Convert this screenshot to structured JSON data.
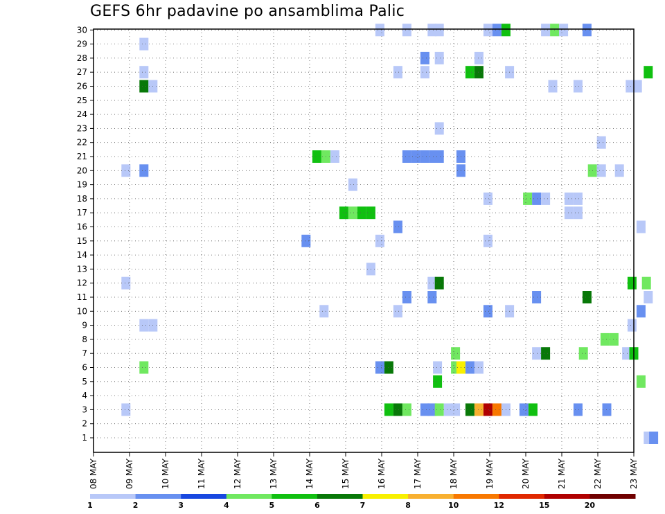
{
  "chart_data": {
    "type": "heatmap",
    "title": "GEFS 6hr padavine po ansamblima Palic",
    "y_ticks": [
      "1",
      "2",
      "3",
      "4",
      "5",
      "6",
      "7",
      "8",
      "9",
      "10",
      "11",
      "12",
      "13",
      "14",
      "15",
      "16",
      "17",
      "18",
      "19",
      "20",
      "21",
      "22",
      "23",
      "24",
      "25",
      "26",
      "27",
      "28",
      "29",
      "30"
    ],
    "x_ticks": [
      "08 MAY",
      "09 MAY",
      "10 MAY",
      "11 MAY",
      "12 MAY",
      "13 MAY",
      "14 MAY",
      "15 MAY",
      "16 MAY",
      "17 MAY",
      "18 MAY",
      "19 MAY",
      "20 MAY",
      "21 MAY",
      "22 MAY",
      "23 MAY"
    ],
    "ylim": [
      0.5,
      30
    ],
    "grid": true,
    "legend": {
      "placement": "bottom",
      "levels": [
        "1",
        "2",
        "3",
        "4",
        "5",
        "6",
        "7",
        "8",
        "10",
        "12",
        "15",
        "20"
      ],
      "colors": [
        "#b8c8f8",
        "#6890f0",
        "#1848e0",
        "#70e860",
        "#10c010",
        "#087808",
        "#f8f000",
        "#f8b030",
        "#f87800",
        "#e02800",
        "#b00000",
        "#700000"
      ]
    },
    "cells": [
      {
        "d": 15.4,
        "m": 1,
        "b": 1
      },
      {
        "d": 15.55,
        "m": 1,
        "b": 2
      },
      {
        "d": 14.25,
        "m": 3,
        "b": 1
      },
      {
        "d": 14.25,
        "m": 3,
        "b": 2
      },
      {
        "d": 0.9,
        "m": 3,
        "b": 1
      },
      {
        "d": 8.2,
        "m": 3,
        "b": 5
      },
      {
        "d": 8.45,
        "m": 3,
        "b": 6
      },
      {
        "d": 8.7,
        "m": 3,
        "b": 4
      },
      {
        "d": 9.2,
        "m": 3,
        "b": 2
      },
      {
        "d": 9.4,
        "m": 3,
        "b": 2
      },
      {
        "d": 9.6,
        "m": 3,
        "b": 4
      },
      {
        "d": 9.85,
        "m": 3,
        "b": 1
      },
      {
        "d": 10.05,
        "m": 3,
        "b": 1
      },
      {
        "d": 10.45,
        "m": 3,
        "b": 6
      },
      {
        "d": 10.7,
        "m": 3,
        "b": 8
      },
      {
        "d": 10.95,
        "m": 3,
        "b": 11
      },
      {
        "d": 11.2,
        "m": 3,
        "b": 9
      },
      {
        "d": 11.45,
        "m": 3,
        "b": 1
      },
      {
        "d": 11.95,
        "m": 3,
        "b": 2
      },
      {
        "d": 12.2,
        "m": 3,
        "b": 5
      },
      {
        "d": 13.45,
        "m": 3,
        "b": 2
      },
      {
        "d": 9.55,
        "m": 5,
        "b": 5
      },
      {
        "d": 15.2,
        "m": 5,
        "b": 4
      },
      {
        "d": 1.4,
        "m": 6,
        "b": 4
      },
      {
        "d": 7.95,
        "m": 6,
        "b": 2
      },
      {
        "d": 8.2,
        "m": 6,
        "b": 6
      },
      {
        "d": 9.55,
        "m": 6,
        "b": 1
      },
      {
        "d": 10.05,
        "m": 6,
        "b": 4
      },
      {
        "d": 10.2,
        "m": 6,
        "b": 7
      },
      {
        "d": 10.45,
        "m": 6,
        "b": 2
      },
      {
        "d": 10.7,
        "m": 6,
        "b": 1
      },
      {
        "d": 10.05,
        "m": 7,
        "b": 4
      },
      {
        "d": 12.3,
        "m": 7,
        "b": 1
      },
      {
        "d": 12.55,
        "m": 7,
        "b": 6
      },
      {
        "d": 13.6,
        "m": 7,
        "b": 4
      },
      {
        "d": 14.8,
        "m": 7,
        "b": 1
      },
      {
        "d": 15.0,
        "m": 7,
        "b": 5
      },
      {
        "d": 14.2,
        "m": 8,
        "b": 4
      },
      {
        "d": 14.45,
        "m": 8,
        "b": 4
      },
      {
        "d": 1.4,
        "m": 9,
        "b": 1
      },
      {
        "d": 1.65,
        "m": 9,
        "b": 1
      },
      {
        "d": 14.95,
        "m": 9,
        "b": 1
      },
      {
        "d": 6.4,
        "m": 10,
        "b": 1
      },
      {
        "d": 8.45,
        "m": 10,
        "b": 1
      },
      {
        "d": 10.95,
        "m": 10,
        "b": 2
      },
      {
        "d": 11.55,
        "m": 10,
        "b": 1
      },
      {
        "d": 15.2,
        "m": 10,
        "b": 2
      },
      {
        "d": 8.7,
        "m": 11,
        "b": 2
      },
      {
        "d": 9.4,
        "m": 11,
        "b": 2
      },
      {
        "d": 12.3,
        "m": 11,
        "b": 2
      },
      {
        "d": 13.7,
        "m": 11,
        "b": 6
      },
      {
        "d": 15.4,
        "m": 11,
        "b": 1
      },
      {
        "d": 0.9,
        "m": 12,
        "b": 1
      },
      {
        "d": 9.4,
        "m": 12,
        "b": 1
      },
      {
        "d": 9.6,
        "m": 12,
        "b": 6
      },
      {
        "d": 14.95,
        "m": 12,
        "b": 5
      },
      {
        "d": 15.35,
        "m": 12,
        "b": 4
      },
      {
        "d": 7.7,
        "m": 13,
        "b": 1
      },
      {
        "d": 5.9,
        "m": 15,
        "b": 2
      },
      {
        "d": 7.95,
        "m": 15,
        "b": 1
      },
      {
        "d": 10.95,
        "m": 15,
        "b": 1
      },
      {
        "d": 8.45,
        "m": 16,
        "b": 2
      },
      {
        "d": 15.2,
        "m": 16,
        "b": 1
      },
      {
        "d": 6.95,
        "m": 17,
        "b": 5
      },
      {
        "d": 7.2,
        "m": 17,
        "b": 4
      },
      {
        "d": 7.45,
        "m": 17,
        "b": 5
      },
      {
        "d": 7.7,
        "m": 17,
        "b": 5
      },
      {
        "d": 13.2,
        "m": 17,
        "b": 1
      },
      {
        "d": 13.45,
        "m": 17,
        "b": 1
      },
      {
        "d": 10.95,
        "m": 18,
        "b": 1
      },
      {
        "d": 12.05,
        "m": 18,
        "b": 4
      },
      {
        "d": 12.3,
        "m": 18,
        "b": 2
      },
      {
        "d": 12.55,
        "m": 18,
        "b": 1
      },
      {
        "d": 13.2,
        "m": 18,
        "b": 1
      },
      {
        "d": 13.45,
        "m": 18,
        "b": 1
      },
      {
        "d": 7.2,
        "m": 19,
        "b": 1
      },
      {
        "d": 0.9,
        "m": 20,
        "b": 1
      },
      {
        "d": 1.4,
        "m": 20,
        "b": 2
      },
      {
        "d": 13.85,
        "m": 20,
        "b": 4
      },
      {
        "d": 14.1,
        "m": 20,
        "b": 1
      },
      {
        "d": 14.6,
        "m": 20,
        "b": 1
      },
      {
        "d": 6.2,
        "m": 21,
        "b": 5
      },
      {
        "d": 6.45,
        "m": 21,
        "b": 4
      },
      {
        "d": 6.7,
        "m": 21,
        "b": 1
      },
      {
        "d": 8.7,
        "m": 21,
        "b": 2
      },
      {
        "d": 8.95,
        "m": 21,
        "b": 2
      },
      {
        "d": 9.2,
        "m": 21,
        "b": 2
      },
      {
        "d": 9.45,
        "m": 21,
        "b": 2
      },
      {
        "d": 9.6,
        "m": 21,
        "b": 2
      },
      {
        "d": 10.2,
        "m": 20,
        "b": 2
      },
      {
        "d": 10.2,
        "m": 21,
        "b": 2
      },
      {
        "d": 14.1,
        "m": 22,
        "b": 1
      },
      {
        "d": 9.6,
        "m": 23,
        "b": 1
      },
      {
        "d": 1.4,
        "m": 26,
        "b": 6
      },
      {
        "d": 1.65,
        "m": 26,
        "b": 1
      },
      {
        "d": 12.75,
        "m": 26,
        "b": 1
      },
      {
        "d": 13.45,
        "m": 26,
        "b": 1
      },
      {
        "d": 14.9,
        "m": 26,
        "b": 1
      },
      {
        "d": 15.1,
        "m": 26,
        "b": 1
      },
      {
        "d": 1.4,
        "m": 27,
        "b": 1
      },
      {
        "d": 8.45,
        "m": 27,
        "b": 1
      },
      {
        "d": 9.2,
        "m": 27,
        "b": 1
      },
      {
        "d": 10.45,
        "m": 27,
        "b": 5
      },
      {
        "d": 10.7,
        "m": 27,
        "b": 6
      },
      {
        "d": 11.55,
        "m": 27,
        "b": 1
      },
      {
        "d": 15.4,
        "m": 27,
        "b": 5
      },
      {
        "d": 9.2,
        "m": 28,
        "b": 2
      },
      {
        "d": 9.6,
        "m": 28,
        "b": 1
      },
      {
        "d": 10.7,
        "m": 28,
        "b": 1
      },
      {
        "d": 1.4,
        "m": 29,
        "b": 1
      },
      {
        "d": 7.95,
        "m": 30,
        "b": 1
      },
      {
        "d": 8.7,
        "m": 30,
        "b": 1
      },
      {
        "d": 9.4,
        "m": 30,
        "b": 1
      },
      {
        "d": 9.6,
        "m": 30,
        "b": 1
      },
      {
        "d": 10.95,
        "m": 30,
        "b": 1
      },
      {
        "d": 11.2,
        "m": 30,
        "b": 2
      },
      {
        "d": 11.45,
        "m": 30,
        "b": 5
      },
      {
        "d": 12.55,
        "m": 30,
        "b": 1
      },
      {
        "d": 12.8,
        "m": 30,
        "b": 4
      },
      {
        "d": 13.05,
        "m": 30,
        "b": 1
      },
      {
        "d": 13.7,
        "m": 30,
        "b": 2
      }
    ]
  }
}
